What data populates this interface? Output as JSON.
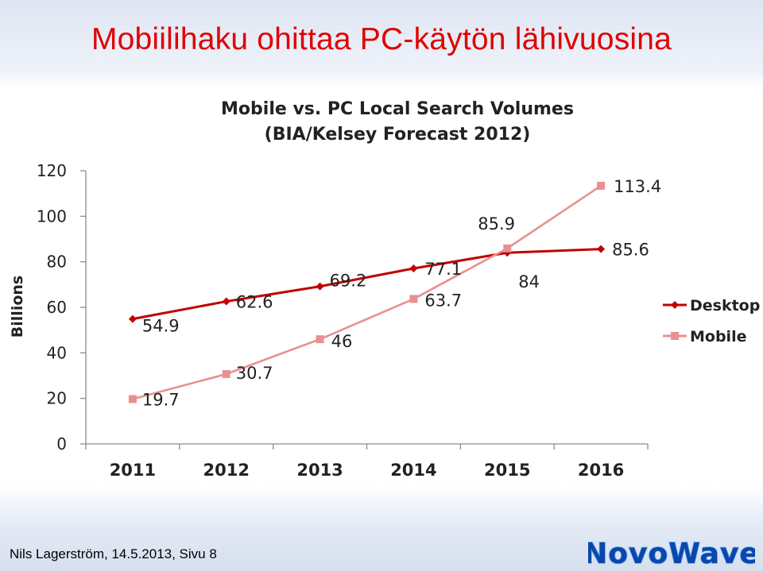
{
  "slide": {
    "title": "Mobiilihaku ohittaa PC-käytön lähivuosina",
    "footer": "Nils Lagerström, 14.5.2013, Sivu 8",
    "logo_text": "NovoWave"
  },
  "colors": {
    "title": "#e00000",
    "desktop": "#c00000",
    "mobile": "#e89090",
    "axis": "#8c8c8c",
    "logo_fill": "#0a47a8",
    "logo_outline": "#5fa6ff"
  },
  "chart_data": {
    "type": "line",
    "title": "Mobile vs. PC Local Search Volumes",
    "subtitle": "(BIA/Kelsey Forecast 2012)",
    "xlabel": "",
    "ylabel": "Billions",
    "ylim": [
      0,
      120
    ],
    "yticks": [
      "0",
      "20",
      "40",
      "60",
      "80",
      "100",
      "120"
    ],
    "categories": [
      "2011",
      "2012",
      "2013",
      "2014",
      "2015",
      "2016"
    ],
    "grid": false,
    "legend_position": "right",
    "series": [
      {
        "name": "Desktop",
        "values": [
          54.9,
          62.6,
          69.2,
          77.1,
          84,
          85.6
        ],
        "labels": [
          "54.9",
          "62.6",
          "69.2",
          "77.1",
          "84",
          "85.6"
        ],
        "marker": "diamond"
      },
      {
        "name": "Mobile",
        "values": [
          19.7,
          30.7,
          46,
          63.7,
          85.9,
          113.4
        ],
        "labels": [
          "19.7",
          "30.7",
          "46",
          "63.7",
          "85.9",
          "113.4"
        ],
        "marker": "square"
      }
    ]
  }
}
